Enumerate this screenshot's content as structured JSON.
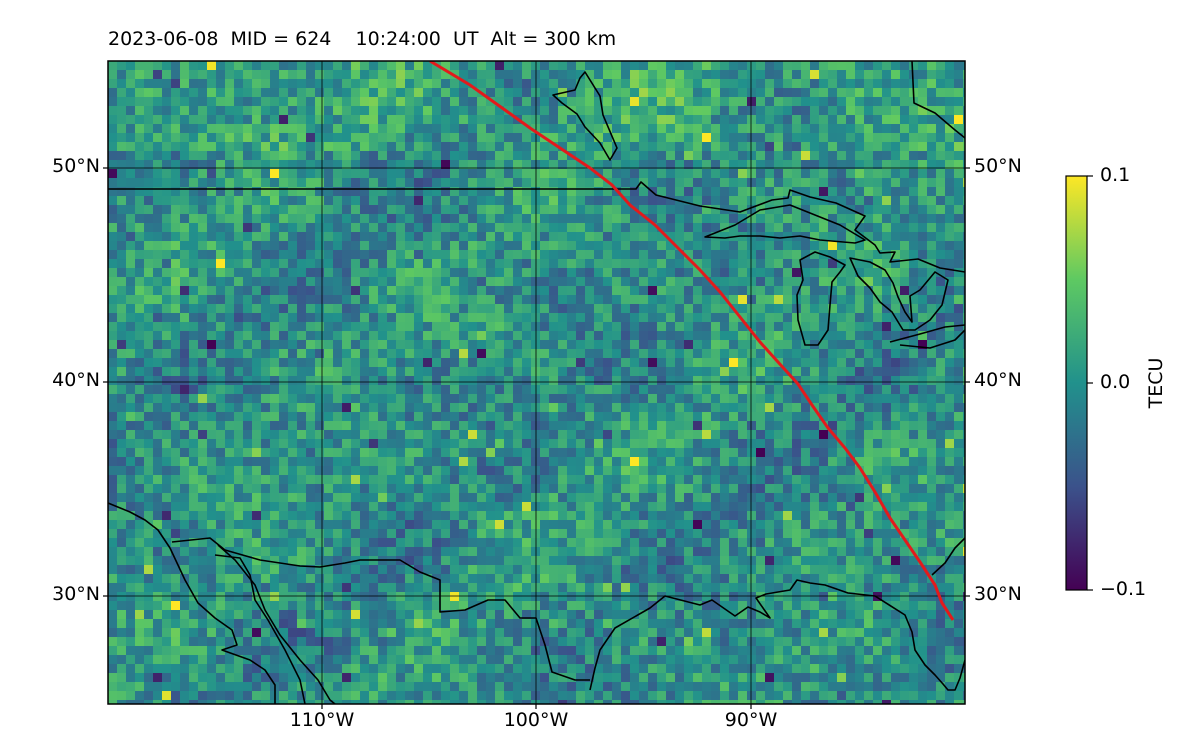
{
  "title": "2023-06-08  MID = 624    10:24:00  UT  Alt = 300 km",
  "map": {
    "lat_ticks": [
      "50°N",
      "40°N",
      "30°N"
    ],
    "lon_ticks": [
      "110°W",
      "100°W",
      "90°W"
    ],
    "lat_range": [
      25,
      55
    ],
    "lon_range": [
      -120,
      -80
    ],
    "grid": true,
    "field_colormap": "viridis",
    "path_color": "#e31a1c"
  },
  "colorbar": {
    "label": "TECU",
    "ticks": [
      "0.1",
      "0.0",
      "−0.1"
    ],
    "range": [
      -0.1,
      0.1
    ],
    "colors": [
      "#440154",
      "#3b528b",
      "#21918c",
      "#5ec962",
      "#fde725"
    ]
  }
}
